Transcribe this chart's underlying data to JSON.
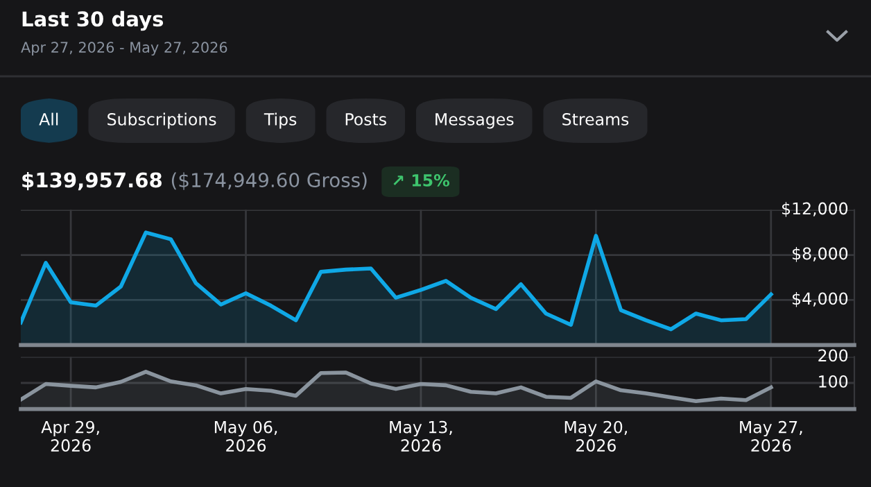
{
  "chart_data": [
    {
      "type": "area",
      "title": "Last 30 days",
      "subtitle": "Apr 27, 2026 - May 27, 2026",
      "annotations": [
        "All",
        "Subscriptions",
        "Tips",
        "Posts",
        "Messages",
        "Streams",
        "$139,957.68",
        "($174,949.60 Gross)",
        "↗ 15%"
      ],
      "x": [
        "2026-04-27",
        "2026-04-28",
        "2026-04-29",
        "2026-04-30",
        "2026-05-01",
        "2026-05-02",
        "2026-05-03",
        "2026-05-04",
        "2026-05-05",
        "2026-05-06",
        "2026-05-07",
        "2026-05-08",
        "2026-05-09",
        "2026-05-10",
        "2026-05-11",
        "2026-05-12",
        "2026-05-13",
        "2026-05-14",
        "2026-05-15",
        "2026-05-16",
        "2026-05-17",
        "2026-05-18",
        "2026-05-19",
        "2026-05-20",
        "2026-05-21",
        "2026-05-22",
        "2026-05-23",
        "2026-05-24",
        "2026-05-25",
        "2026-05-26",
        "2026-05-27"
      ],
      "series": [
        {
          "color": "#0fa8e6",
          "values": [
            2000,
            7300,
            3800,
            3500,
            5200,
            10000,
            9400,
            5500,
            3600,
            4600,
            3500,
            2200,
            6500,
            6700,
            6800,
            4200,
            4900,
            5700,
            4200,
            3200,
            5400,
            2800,
            1800,
            9700,
            3100,
            2200,
            1400,
            2800,
            2200,
            2300,
            4500
          ]
        }
      ],
      "xlim": [
        "2026-04-27",
        "2026-05-30T08:00"
      ],
      "xticks": [
        {
          "value": "2026-04-29",
          "label": null
        },
        {
          "value": "2026-05-06",
          "label": null
        },
        {
          "value": "2026-05-13",
          "label": null
        },
        {
          "value": "2026-05-20",
          "label": null
        },
        {
          "value": "2026-05-27",
          "label": null
        }
      ],
      "ylim": [
        0,
        12000
      ],
      "yticks": [
        {
          "value": 4000,
          "label": "$4,000"
        },
        {
          "value": 8000,
          "label": "$8,000"
        },
        {
          "value": 12000,
          "label": "$12,000"
        }
      ],
      "tick_labels": "y",
      "grid": true
    },
    {
      "type": "area",
      "x": [
        "2026-04-27",
        "2026-04-28",
        "2026-04-29",
        "2026-04-30",
        "2026-05-01",
        "2026-05-02",
        "2026-05-03",
        "2026-05-04",
        "2026-05-05",
        "2026-05-06",
        "2026-05-07",
        "2026-05-08",
        "2026-05-09",
        "2026-05-10",
        "2026-05-11",
        "2026-05-12",
        "2026-05-13",
        "2026-05-14",
        "2026-05-15",
        "2026-05-16",
        "2026-05-17",
        "2026-05-18",
        "2026-05-19",
        "2026-05-20",
        "2026-05-21",
        "2026-05-22",
        "2026-05-23",
        "2026-05-24",
        "2026-05-25",
        "2026-05-26",
        "2026-05-27"
      ],
      "series": [
        {
          "color": "#8a949e",
          "values": [
            36,
            96,
            89,
            83,
            104,
            143,
            106,
            91,
            60,
            77,
            70,
            51,
            138,
            140,
            98,
            77,
            96,
            91,
            66,
            60,
            83,
            47,
            43,
            106,
            72,
            60,
            45,
            30,
            40,
            34,
            83
          ]
        }
      ],
      "xlim": [
        "2026-04-27",
        "2026-05-30T08:00"
      ],
      "xticks": [
        {
          "value": "2026-04-29",
          "label": "Apr 29,\n2026"
        },
        {
          "value": "2026-05-06",
          "label": "May 06,\n2026"
        },
        {
          "value": "2026-05-13",
          "label": "May 13,\n2026"
        },
        {
          "value": "2026-05-20",
          "label": "May 20,\n2026"
        },
        {
          "value": "2026-05-27",
          "label": "May 27,\n2026"
        }
      ],
      "ylim": [
        0,
        200
      ],
      "yticks": [
        100,
        200
      ],
      "grid": true
    }
  ]
}
